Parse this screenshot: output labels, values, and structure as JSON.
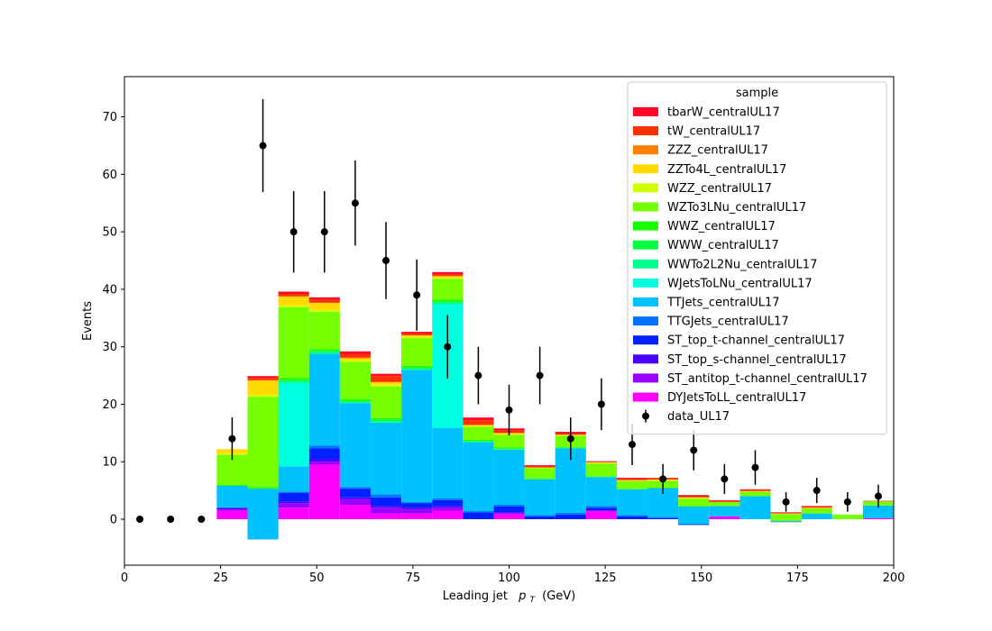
{
  "chart_data": {
    "type": "bar",
    "stacked": true,
    "xlabel": "Leading jet",
    "xlabel_var": "p",
    "xlabel_sub": "T",
    "xlabel_unit": "(GeV)",
    "ylabel": "Events",
    "xlim": [
      0,
      200
    ],
    "ylim": [
      -8,
      77
    ],
    "xticks": [
      0,
      25,
      50,
      75,
      100,
      125,
      150,
      175,
      200
    ],
    "yticks": [
      0,
      10,
      20,
      30,
      40,
      50,
      60,
      70
    ],
    "bin_edges": [
      24,
      32,
      40,
      48,
      56,
      64,
      72,
      80,
      88,
      96,
      104,
      112,
      120,
      128,
      136,
      144,
      152,
      160,
      168,
      176,
      184,
      192,
      200
    ],
    "legend": {
      "title": "sample",
      "placement": "upper right"
    },
    "stack_series": [
      {
        "name": "DYJetsToLL_centralUL17",
        "color": "#ff00ff",
        "values": [
          1.5,
          -3.5,
          2.0,
          9.5,
          2.5,
          1.0,
          1.0,
          1.5,
          0,
          1.0,
          0,
          0,
          1.5,
          0,
          0,
          -1.0,
          0.5,
          0,
          -0.5,
          0,
          0,
          0.2
        ]
      },
      {
        "name": "ST_antitop_t-channel_centralUL17",
        "color": "#9a00ff",
        "values": [
          0.2,
          0,
          0.8,
          0.5,
          1.0,
          1.0,
          0.7,
          0.5,
          0,
          0,
          0,
          0,
          0,
          0,
          0,
          0,
          0,
          0,
          0,
          0,
          0,
          0
        ]
      },
      {
        "name": "ST_top_s-channel_centralUL17",
        "color": "#4b00ff",
        "values": [
          0.3,
          0,
          0.3,
          0.5,
          0.3,
          0.3,
          0.3,
          0.3,
          0,
          0.2,
          0,
          0,
          0,
          0,
          0,
          0,
          0,
          0,
          0,
          0,
          0,
          0
        ]
      },
      {
        "name": "ST_top_t-channel_centralUL17",
        "color": "#0020ff",
        "values": [
          0,
          0,
          1.5,
          1.8,
          1.5,
          1.5,
          0.8,
          1.0,
          1.2,
          1.0,
          0.5,
          0.8,
          0.5,
          0.5,
          0.2,
          0,
          0,
          0,
          0,
          0,
          0,
          0
        ]
      },
      {
        "name": "TTGJets_centralUL17",
        "color": "#0072ff",
        "values": [
          0,
          0,
          0.2,
          0.5,
          0.3,
          0.5,
          0.2,
          0.3,
          0.2,
          0.3,
          0.2,
          0.3,
          0.3,
          0.2,
          0.2,
          0.2,
          0,
          0,
          0,
          0,
          0,
          0
        ]
      },
      {
        "name": "TTJets_centralUL17",
        "color": "#00c2ff",
        "values": [
          3.8,
          8.8,
          4.4,
          16.0,
          14.6,
          12.5,
          23.0,
          12.3,
          12.0,
          9.6,
          6.2,
          11.2,
          5.0,
          4.5,
          5.0,
          3.0,
          1.8,
          4.0,
          0.2,
          1.0,
          0,
          2.2
        ]
      },
      {
        "name": "WJetsToLNu_centralUL17",
        "color": "#00ffe0",
        "values": [
          0,
          0,
          14.5,
          0,
          0,
          0,
          0,
          21.5,
          0,
          0,
          0,
          0,
          0,
          0,
          0,
          0,
          0,
          0,
          0,
          0,
          0,
          0
        ]
      },
      {
        "name": "WWTo2L2Nu_centralUL17",
        "color": "#00ff8f",
        "values": [
          0,
          0,
          0.3,
          0.3,
          0.2,
          0.3,
          0.2,
          0.3,
          0.1,
          0.1,
          0.1,
          0.1,
          0.1,
          0,
          0,
          0,
          0,
          0,
          0,
          0,
          0,
          0
        ]
      },
      {
        "name": "WWW_centralUL17",
        "color": "#00ff40",
        "values": [
          0,
          0,
          0.2,
          0.2,
          0.2,
          0.2,
          0.2,
          0.2,
          0.1,
          0.1,
          0,
          0.1,
          0,
          0,
          0,
          0,
          0,
          0,
          0,
          0,
          0,
          0
        ]
      },
      {
        "name": "WWZ_centralUL17",
        "color": "#1aff00",
        "values": [
          0.2,
          0.3,
          0.4,
          0.3,
          0.3,
          0.3,
          0.3,
          0.3,
          0.2,
          0.2,
          0.1,
          0.1,
          0.1,
          0.1,
          0.1,
          0.1,
          0,
          0,
          0,
          0,
          0,
          0
        ]
      },
      {
        "name": "WZTo3LNu_centralUL17",
        "color": "#75ff00",
        "values": [
          5.2,
          15.7,
          12.3,
          6.5,
          6.5,
          5.5,
          4.8,
          3.6,
          2.3,
          2.2,
          1.8,
          1.9,
          2.2,
          1.3,
          1.2,
          1.3,
          0.7,
          0.8,
          1.2,
          0.9,
          0.8,
          0.7
        ]
      },
      {
        "name": "WZZ_centralUL17",
        "color": "#d0ff00",
        "values": [
          0.2,
          0.3,
          0.3,
          0.3,
          0.2,
          0.3,
          0.2,
          0.2,
          0.1,
          0.1,
          0,
          0.1,
          0.1,
          0.1,
          0.1,
          0.1,
          0,
          0,
          0,
          0,
          0,
          0
        ]
      },
      {
        "name": "ZZTo4L_centralUL17",
        "color": "#ffdb00",
        "values": [
          0.8,
          2.5,
          1.5,
          1.2,
          0.4,
          0.4,
          0.3,
          0.3,
          0.2,
          0.2,
          0.1,
          0.1,
          0.1,
          0.1,
          0.1,
          0.1,
          0,
          0.1,
          0.1,
          0.1,
          0,
          0
        ]
      },
      {
        "name": "ZZZ_centralUL17",
        "color": "#ff8000",
        "values": [
          0,
          0.1,
          0.1,
          0.1,
          0.1,
          0.1,
          0,
          0,
          0,
          0,
          0,
          0,
          0,
          0,
          0,
          0,
          0,
          0,
          0,
          0,
          0,
          0
        ]
      },
      {
        "name": "tW_centralUL17",
        "color": "#ff3000",
        "values": [
          0,
          0.4,
          0.4,
          0.5,
          0.6,
          1.0,
          0.3,
          0.3,
          0.8,
          0.4,
          0.2,
          0.2,
          0.1,
          0.2,
          0.2,
          0.2,
          0.2,
          0.2,
          0.1,
          0.2,
          0,
          0.1
        ]
      },
      {
        "name": "tbarW_centralUL17",
        "color": "#ff0a26",
        "values": [
          0,
          0.3,
          0.4,
          0.4,
          0.5,
          0.4,
          0.3,
          0.4,
          0.5,
          0.4,
          0.2,
          0.3,
          0.1,
          0.2,
          0.1,
          0.2,
          0.1,
          0.1,
          0.1,
          0.1,
          0,
          0
        ]
      }
    ],
    "data_series": {
      "name": "data_UL17",
      "color": "#000000",
      "x": [
        4,
        12,
        20,
        28,
        36,
        44,
        52,
        60,
        68,
        76,
        84,
        92,
        100,
        108,
        116,
        124,
        132,
        140,
        148,
        156,
        164,
        172,
        180,
        188,
        196
      ],
      "y": [
        0,
        0,
        0,
        14,
        65,
        50,
        50,
        55,
        45,
        39,
        30,
        25,
        19,
        25,
        14,
        20,
        13,
        7,
        12,
        7,
        9,
        3,
        5,
        3,
        4
      ],
      "yerr": [
        0,
        0,
        0,
        3.7,
        8.1,
        7.1,
        7.1,
        7.4,
        6.7,
        6.2,
        5.5,
        5.0,
        4.4,
        5.0,
        3.7,
        4.5,
        3.6,
        2.6,
        3.5,
        2.6,
        3.0,
        1.7,
        2.2,
        1.7,
        2.0
      ]
    }
  }
}
